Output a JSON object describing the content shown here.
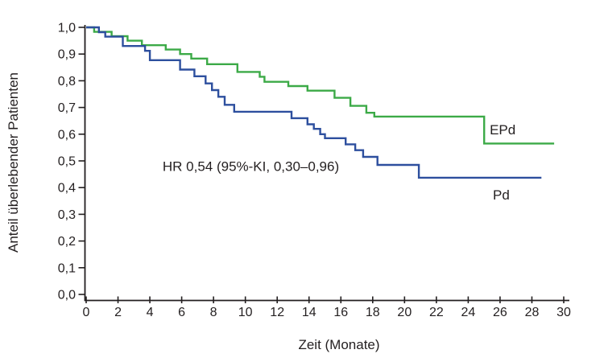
{
  "chart_data": {
    "type": "line",
    "subtype": "kaplan-meier-step",
    "title": "",
    "xlabel": "Zeit (Monate)",
    "ylabel": "Anteil überlebender Patienten",
    "xlim": [
      0,
      30
    ],
    "ylim": [
      0.0,
      1.0
    ],
    "grid": false,
    "legend_position": "inline-right-of-curves",
    "xticks": [
      0,
      2,
      4,
      6,
      8,
      10,
      12,
      14,
      16,
      18,
      20,
      22,
      24,
      26,
      28,
      30
    ],
    "xtick_labels": [
      "0",
      "2",
      "4",
      "6",
      "8",
      "10",
      "12",
      "14",
      "16",
      "18",
      "20",
      "22",
      "24",
      "26",
      "28",
      "30"
    ],
    "yticks": [
      0.0,
      0.1,
      0.2,
      0.3,
      0.4,
      0.5,
      0.6,
      0.7,
      0.8,
      0.9,
      1.0
    ],
    "ytick_labels": [
      "0,0",
      "0,1",
      "0,2",
      "0,3",
      "0,4",
      "0,5",
      "0,6",
      "0,7",
      "0,8",
      "0,9",
      "1,0"
    ],
    "annotation": {
      "text": "HR 0,54 (95%-KI, 0,30–0,96)",
      "x_month": 4.8,
      "y_value": 0.48
    },
    "series": [
      {
        "name": "EPd",
        "color": "#3caa47",
        "label_pos": {
          "x_month": 25.35,
          "y_value": 0.617
        },
        "end_month": 29.4,
        "steps": [
          [
            0,
            1.0
          ],
          [
            0.5,
            0.983
          ],
          [
            1.6,
            0.967
          ],
          [
            2.6,
            0.95
          ],
          [
            3.5,
            0.933
          ],
          [
            5.0,
            0.917
          ],
          [
            5.9,
            0.9
          ],
          [
            6.6,
            0.883
          ],
          [
            7.6,
            0.862
          ],
          [
            9.5,
            0.833
          ],
          [
            10.9,
            0.815
          ],
          [
            11.2,
            0.796
          ],
          [
            12.7,
            0.78
          ],
          [
            13.9,
            0.763
          ],
          [
            15.6,
            0.736
          ],
          [
            16.6,
            0.706
          ],
          [
            17.6,
            0.68
          ],
          [
            18.1,
            0.666
          ],
          [
            25.0,
            0.565
          ]
        ]
      },
      {
        "name": "Pd",
        "color": "#2d4f9e",
        "label_pos": {
          "x_month": 25.55,
          "y_value": 0.373
        },
        "end_month": 28.6,
        "steps": [
          [
            0,
            1.0
          ],
          [
            0.8,
            0.982
          ],
          [
            1.2,
            0.965
          ],
          [
            2.3,
            0.93
          ],
          [
            3.7,
            0.912
          ],
          [
            4.0,
            0.877
          ],
          [
            5.9,
            0.842
          ],
          [
            6.8,
            0.817
          ],
          [
            7.5,
            0.79
          ],
          [
            7.9,
            0.765
          ],
          [
            8.3,
            0.74
          ],
          [
            8.7,
            0.71
          ],
          [
            9.3,
            0.684
          ],
          [
            12.9,
            0.66
          ],
          [
            13.9,
            0.637
          ],
          [
            14.3,
            0.62
          ],
          [
            14.7,
            0.6
          ],
          [
            15.0,
            0.585
          ],
          [
            16.3,
            0.562
          ],
          [
            16.9,
            0.54
          ],
          [
            17.4,
            0.515
          ],
          [
            18.3,
            0.485
          ],
          [
            20.9,
            0.437
          ]
        ]
      }
    ]
  },
  "layout_colors": {
    "axis": "#231f20",
    "text": "#231f20",
    "background": "#ffffff"
  }
}
